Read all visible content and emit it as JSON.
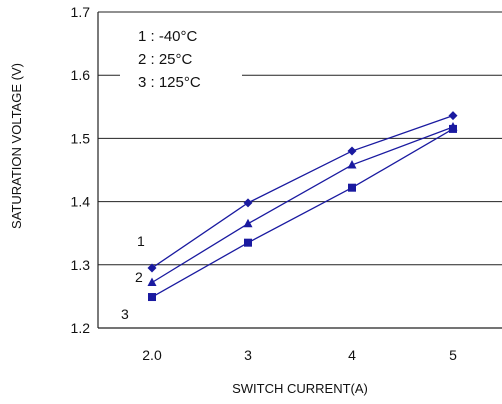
{
  "chart_data": {
    "type": "line",
    "xlabel": "SWITCH CURRENT(A)",
    "ylabel": "SATURATION VOLTAGE (V)",
    "ylim": [
      1.2,
      1.7
    ],
    "yticks": [
      "1.2",
      "1.3",
      "1.4",
      "1.5",
      "1.6",
      "1.7"
    ],
    "categories": [
      "2.0",
      "3",
      "4",
      "5"
    ],
    "grid": "horizontal",
    "legend_position": "top-left",
    "series_color": "#1a1aa0",
    "legend": [
      "1 : -40°C",
      "2 : 25°C",
      "3 : 125°C"
    ],
    "series": [
      {
        "name": "1",
        "marker": "diamond",
        "values": [
          1.295,
          1.398,
          1.48,
          1.536
        ]
      },
      {
        "name": "2",
        "marker": "triangle",
        "values": [
          1.272,
          1.365,
          1.458,
          1.518
        ]
      },
      {
        "name": "3",
        "marker": "square",
        "values": [
          1.249,
          1.335,
          1.422,
          1.515
        ]
      }
    ]
  }
}
